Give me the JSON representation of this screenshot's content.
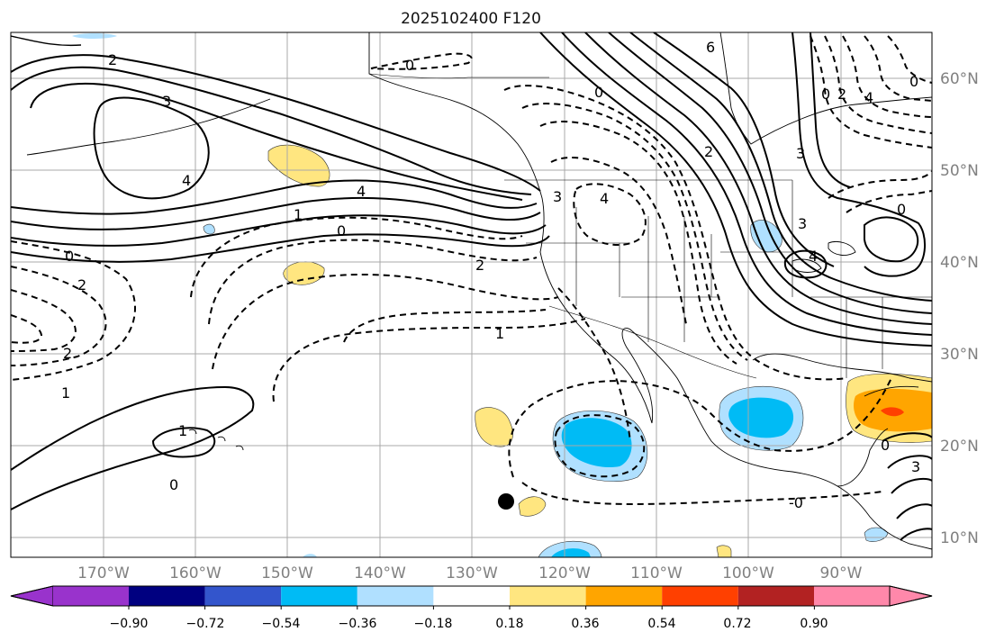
{
  "title": "2025102400 F120",
  "map": {
    "lat_labels": [
      "60°N",
      "50°N",
      "40°N",
      "30°N",
      "20°N",
      "10°N"
    ],
    "lon_labels": [
      "170°W",
      "160°W",
      "150°W",
      "140°W",
      "130°W",
      "120°W",
      "110°W",
      "100°W",
      "90°W"
    ],
    "contour_labels": [
      "2",
      "3",
      "4",
      "4",
      "1",
      "0",
      "0",
      "2",
      "2",
      "1",
      "1",
      "0",
      "0",
      "6",
      "0",
      "2",
      "2",
      "3",
      "4",
      "0",
      "3",
      "3",
      "4",
      "0",
      "1",
      "2",
      "4",
      "0",
      "0",
      "-0",
      "3"
    ],
    "marker": "black-dot"
  },
  "colorbar": {
    "ticks": [
      "−0.90",
      "−0.72",
      "−0.54",
      "−0.36",
      "−0.18",
      "0.18",
      "0.36",
      "0.54",
      "0.72",
      "0.90"
    ],
    "colors": [
      "#9933cc",
      "#000080",
      "#3355cc",
      "#00bbf5",
      "#b0e0ff",
      "#ffffff",
      "#ffe680",
      "#ffa500",
      "#ff4000",
      "#b22222",
      "#ff88aa"
    ]
  }
}
